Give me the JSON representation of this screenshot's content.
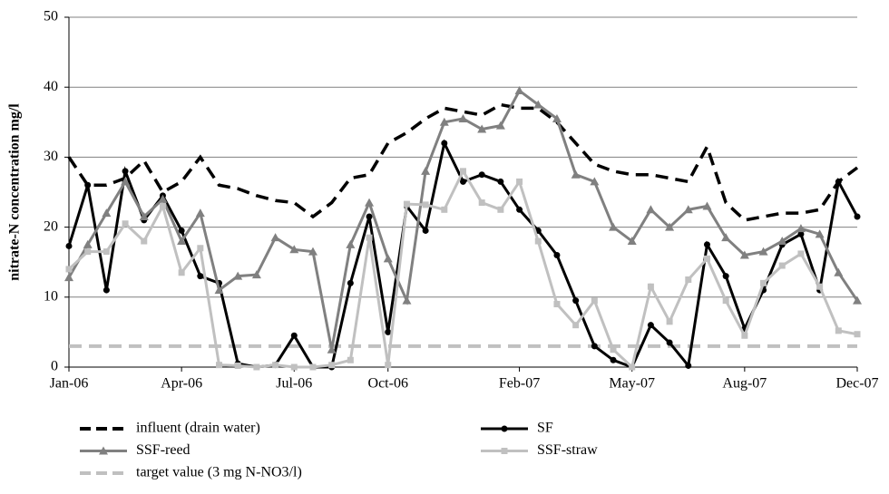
{
  "chart_data": {
    "type": "line",
    "y_label": "nitrate-N concentration mg/l",
    "categories": [
      "Jan-06",
      null,
      null,
      null,
      null,
      null,
      "Apr-06",
      null,
      null,
      null,
      null,
      null,
      "Jul-06",
      null,
      null,
      null,
      null,
      "Oct-06",
      null,
      null,
      null,
      null,
      null,
      null,
      "Feb-07",
      null,
      null,
      null,
      null,
      null,
      "May-07",
      null,
      null,
      null,
      null,
      null,
      "Aug-07",
      null,
      null,
      null,
      null,
      null,
      "Dec-07"
    ],
    "series": [
      {
        "name": "influent (drain water)",
        "color": "#000000",
        "line_style": "dashed",
        "marker": "none",
        "values": [
          30,
          26,
          26,
          27,
          29.5,
          25,
          26.5,
          30,
          26,
          25.5,
          24.5,
          23.8,
          23.5,
          21.5,
          23.5,
          27,
          27.5,
          32,
          33.5,
          35.5,
          37,
          36.5,
          36,
          37.5,
          37,
          37,
          35,
          32,
          29,
          28,
          27.5,
          27.5,
          27,
          26.5,
          31.5,
          23.5,
          21,
          21.5,
          22,
          22,
          22.5,
          26.5,
          28.5
        ]
      },
      {
        "name": "SF",
        "color": "#000000",
        "line_style": "solid",
        "marker": "circle",
        "values": [
          17.3,
          26,
          11,
          28,
          21,
          24.5,
          19.5,
          13,
          12,
          0.5,
          0,
          0.3,
          4.5,
          0,
          0,
          12,
          21.5,
          5,
          23,
          19.5,
          32,
          26.5,
          27.5,
          26.5,
          22.5,
          19.5,
          16,
          9.5,
          3,
          1,
          0,
          6,
          3.5,
          0.2,
          17.5,
          13,
          5.5,
          11,
          17.5,
          19,
          11,
          26.5,
          21.5
        ]
      },
      {
        "name": "SSF-reed",
        "color": "#808080",
        "line_style": "solid",
        "marker": "triangle",
        "values": [
          12.8,
          17.5,
          22,
          26.5,
          21.5,
          24,
          18,
          22,
          11,
          13,
          13.2,
          18.5,
          16.8,
          16.5,
          2.5,
          17.5,
          23.5,
          15.5,
          9.5,
          28,
          35,
          35.5,
          34,
          34.5,
          39.5,
          37.5,
          35.5,
          27.5,
          26.5,
          20,
          18,
          22.5,
          20,
          22.5,
          23,
          18.5,
          16,
          16.5,
          18,
          19.8,
          19,
          13.5,
          9.5
        ]
      },
      {
        "name": "SSF-straw",
        "color": "#c0c0c0",
        "line_style": "solid",
        "marker": "square",
        "values": [
          14,
          16.5,
          16.5,
          20.5,
          18,
          23,
          13.5,
          17,
          0.3,
          0.2,
          0,
          0.3,
          0,
          0,
          0.3,
          1,
          18.5,
          0.3,
          23.3,
          23.2,
          22.5,
          28,
          23.5,
          22.5,
          26.5,
          18,
          9,
          6,
          9.5,
          2.5,
          0,
          11.5,
          6.5,
          12.5,
          15.5,
          9.5,
          4.5,
          12,
          14.5,
          16.2,
          11.5,
          5.2,
          4.7
        ]
      }
    ],
    "reference_lines": [
      {
        "name": "target value (3 mg N-NO3/l)",
        "value": 3,
        "color": "#c0c0c0",
        "line_style": "dashed"
      }
    ],
    "ylim": [
      0,
      50
    ],
    "yticks": [
      0,
      10,
      20,
      30,
      40,
      50
    ],
    "grid": true,
    "legend": "bottom"
  }
}
